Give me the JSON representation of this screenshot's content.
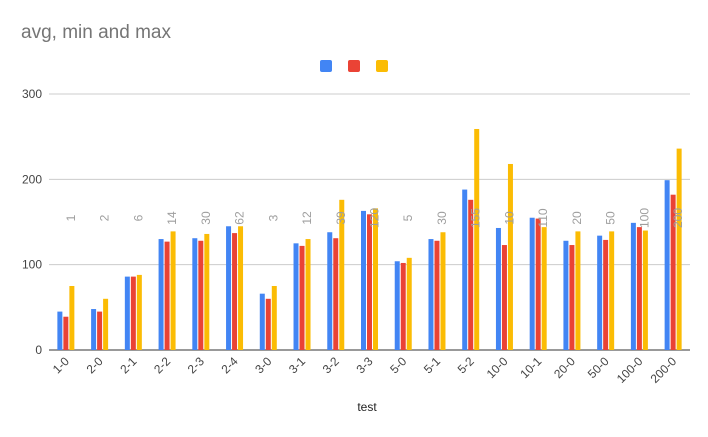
{
  "chart_data": {
    "type": "bar",
    "title": "avg, min and max",
    "xlabel": "test",
    "ylabel": "",
    "ylim": [
      0,
      300
    ],
    "yticks": [
      0,
      100,
      200,
      300
    ],
    "grid": true,
    "legend_position": "top",
    "categories": [
      "1-0",
      "2-0",
      "2-1",
      "2-2",
      "2-3",
      "2-4",
      "3-0",
      "3-1",
      "3-2",
      "3-3",
      "5-0",
      "5-1",
      "5-2",
      "10-0",
      "10-1",
      "20-0",
      "50-0",
      "100-0",
      "200-0"
    ],
    "series": [
      {
        "name": "",
        "color": "#4285f4",
        "values": [
          45,
          48,
          86,
          130,
          131,
          145,
          66,
          125,
          138,
          163,
          104,
          130,
          188,
          143,
          155,
          128,
          134,
          149,
          199
        ]
      },
      {
        "name": "",
        "color": "#ea4335",
        "values": [
          39,
          45,
          86,
          127,
          128,
          137,
          60,
          122,
          131,
          159,
          102,
          128,
          176,
          123,
          154,
          123,
          129,
          144,
          182
        ]
      },
      {
        "name": "",
        "color": "#fbbc04",
        "values": [
          75,
          60,
          88,
          139,
          136,
          145,
          75,
          130,
          176,
          166,
          108,
          138,
          259,
          218,
          144,
          139,
          139,
          140,
          236
        ]
      }
    ],
    "data_labels": [
      "1",
      "2",
      "6",
      "14",
      "30",
      "62",
      "3",
      "12",
      "39",
      "120",
      "5",
      "30",
      "155",
      "10",
      "110",
      "20",
      "50",
      "100",
      "200"
    ]
  }
}
